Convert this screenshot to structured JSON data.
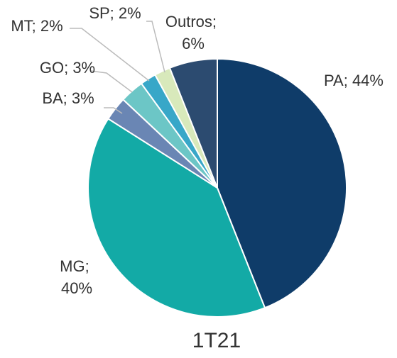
{
  "chart_data": {
    "type": "pie",
    "title": "1T21",
    "values": [
      44,
      40,
      3,
      3,
      2,
      2,
      6
    ],
    "value_labels": [
      "PA; 44%",
      "MG; 40%",
      "BA; 3%",
      "GO; 3%",
      "MT; 2%",
      "SP; 2%",
      "Outros; 6%"
    ],
    "colors": [
      "#0f3c69",
      "#13aaa6",
      "#6a86b4",
      "#6cc6c6",
      "#38a7c8",
      "#d8e9bb",
      "#2c4b70"
    ],
    "start_angle": 0,
    "direction": "clockwise"
  }
}
